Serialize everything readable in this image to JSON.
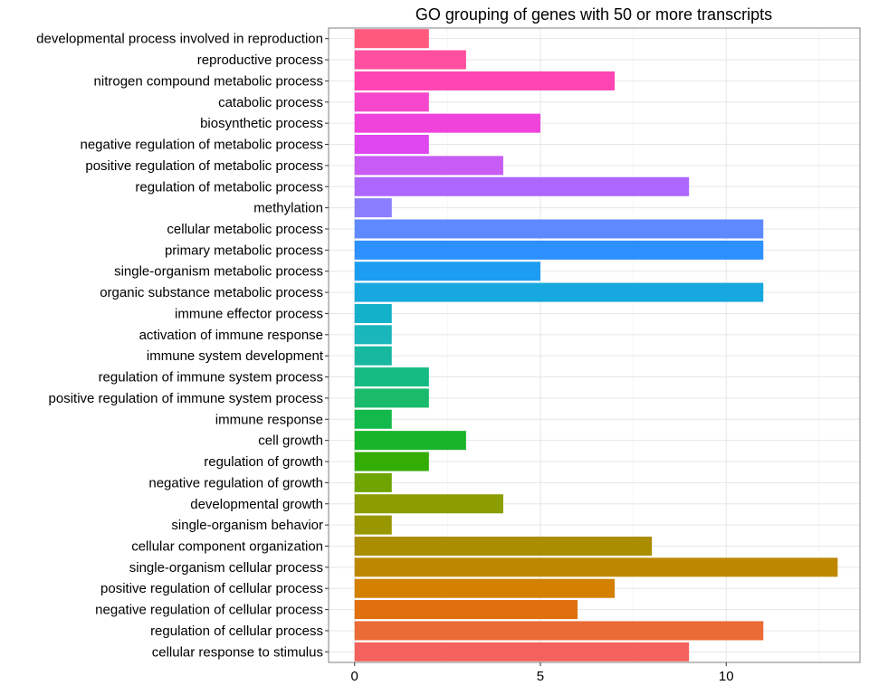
{
  "chart_data": {
    "type": "bar",
    "orientation": "horizontal",
    "title": "GO grouping of genes with 50 or more transcripts",
    "xlabel": "",
    "ylabel": "",
    "xlim": [
      -0.7,
      13.6
    ],
    "x_ticks": [
      "0",
      "5",
      "10"
    ],
    "grid": true,
    "legend": "none",
    "categories": [
      "developmental process involved in reproduction",
      "reproductive process",
      "nitrogen compound metabolic process",
      "catabolic process",
      "biosynthetic process",
      "negative regulation of metabolic process",
      "positive regulation of metabolic process",
      "regulation of metabolic process",
      "methylation",
      "cellular metabolic process",
      "primary metabolic process",
      "single-organism metabolic process",
      "organic substance metabolic process",
      "immune effector process",
      "activation of immune response",
      "immune system development",
      "regulation of immune system process",
      "positive regulation of immune system process",
      "immune response",
      "cell growth",
      "regulation of growth",
      "negative regulation of growth",
      "developmental growth",
      "single-organism behavior",
      "cellular component organization",
      "single-organism cellular process",
      "positive regulation of cellular process",
      "negative regulation of cellular process",
      "regulation of cellular process",
      "cellular response to stimulus"
    ],
    "values": [
      2,
      3,
      7,
      2,
      5,
      2,
      4,
      9,
      1,
      11,
      11,
      5,
      11,
      1,
      1,
      1,
      2,
      2,
      1,
      3,
      2,
      1,
      4,
      1,
      8,
      13,
      7,
      6,
      11,
      9
    ],
    "colors": [
      "#FF5A7E",
      "#FF4F9E",
      "#FF45B4",
      "#F447CC",
      "#EF43DC",
      "#E046EE",
      "#C95CF5",
      "#AD67FF",
      "#8A7DFF",
      "#5F89FF",
      "#2D90FF",
      "#1C9DF2",
      "#16A8DF",
      "#13B1CA",
      "#19B6BB",
      "#17B89F",
      "#16BA83",
      "#1ABA6B",
      "#14B94C",
      "#1AB42A",
      "#33AC03",
      "#6EA500",
      "#8B9D00",
      "#999700",
      "#AA8D00",
      "#BD8800",
      "#D48000",
      "#E06F0E",
      "#EA6B35",
      "#F3625C"
    ]
  }
}
